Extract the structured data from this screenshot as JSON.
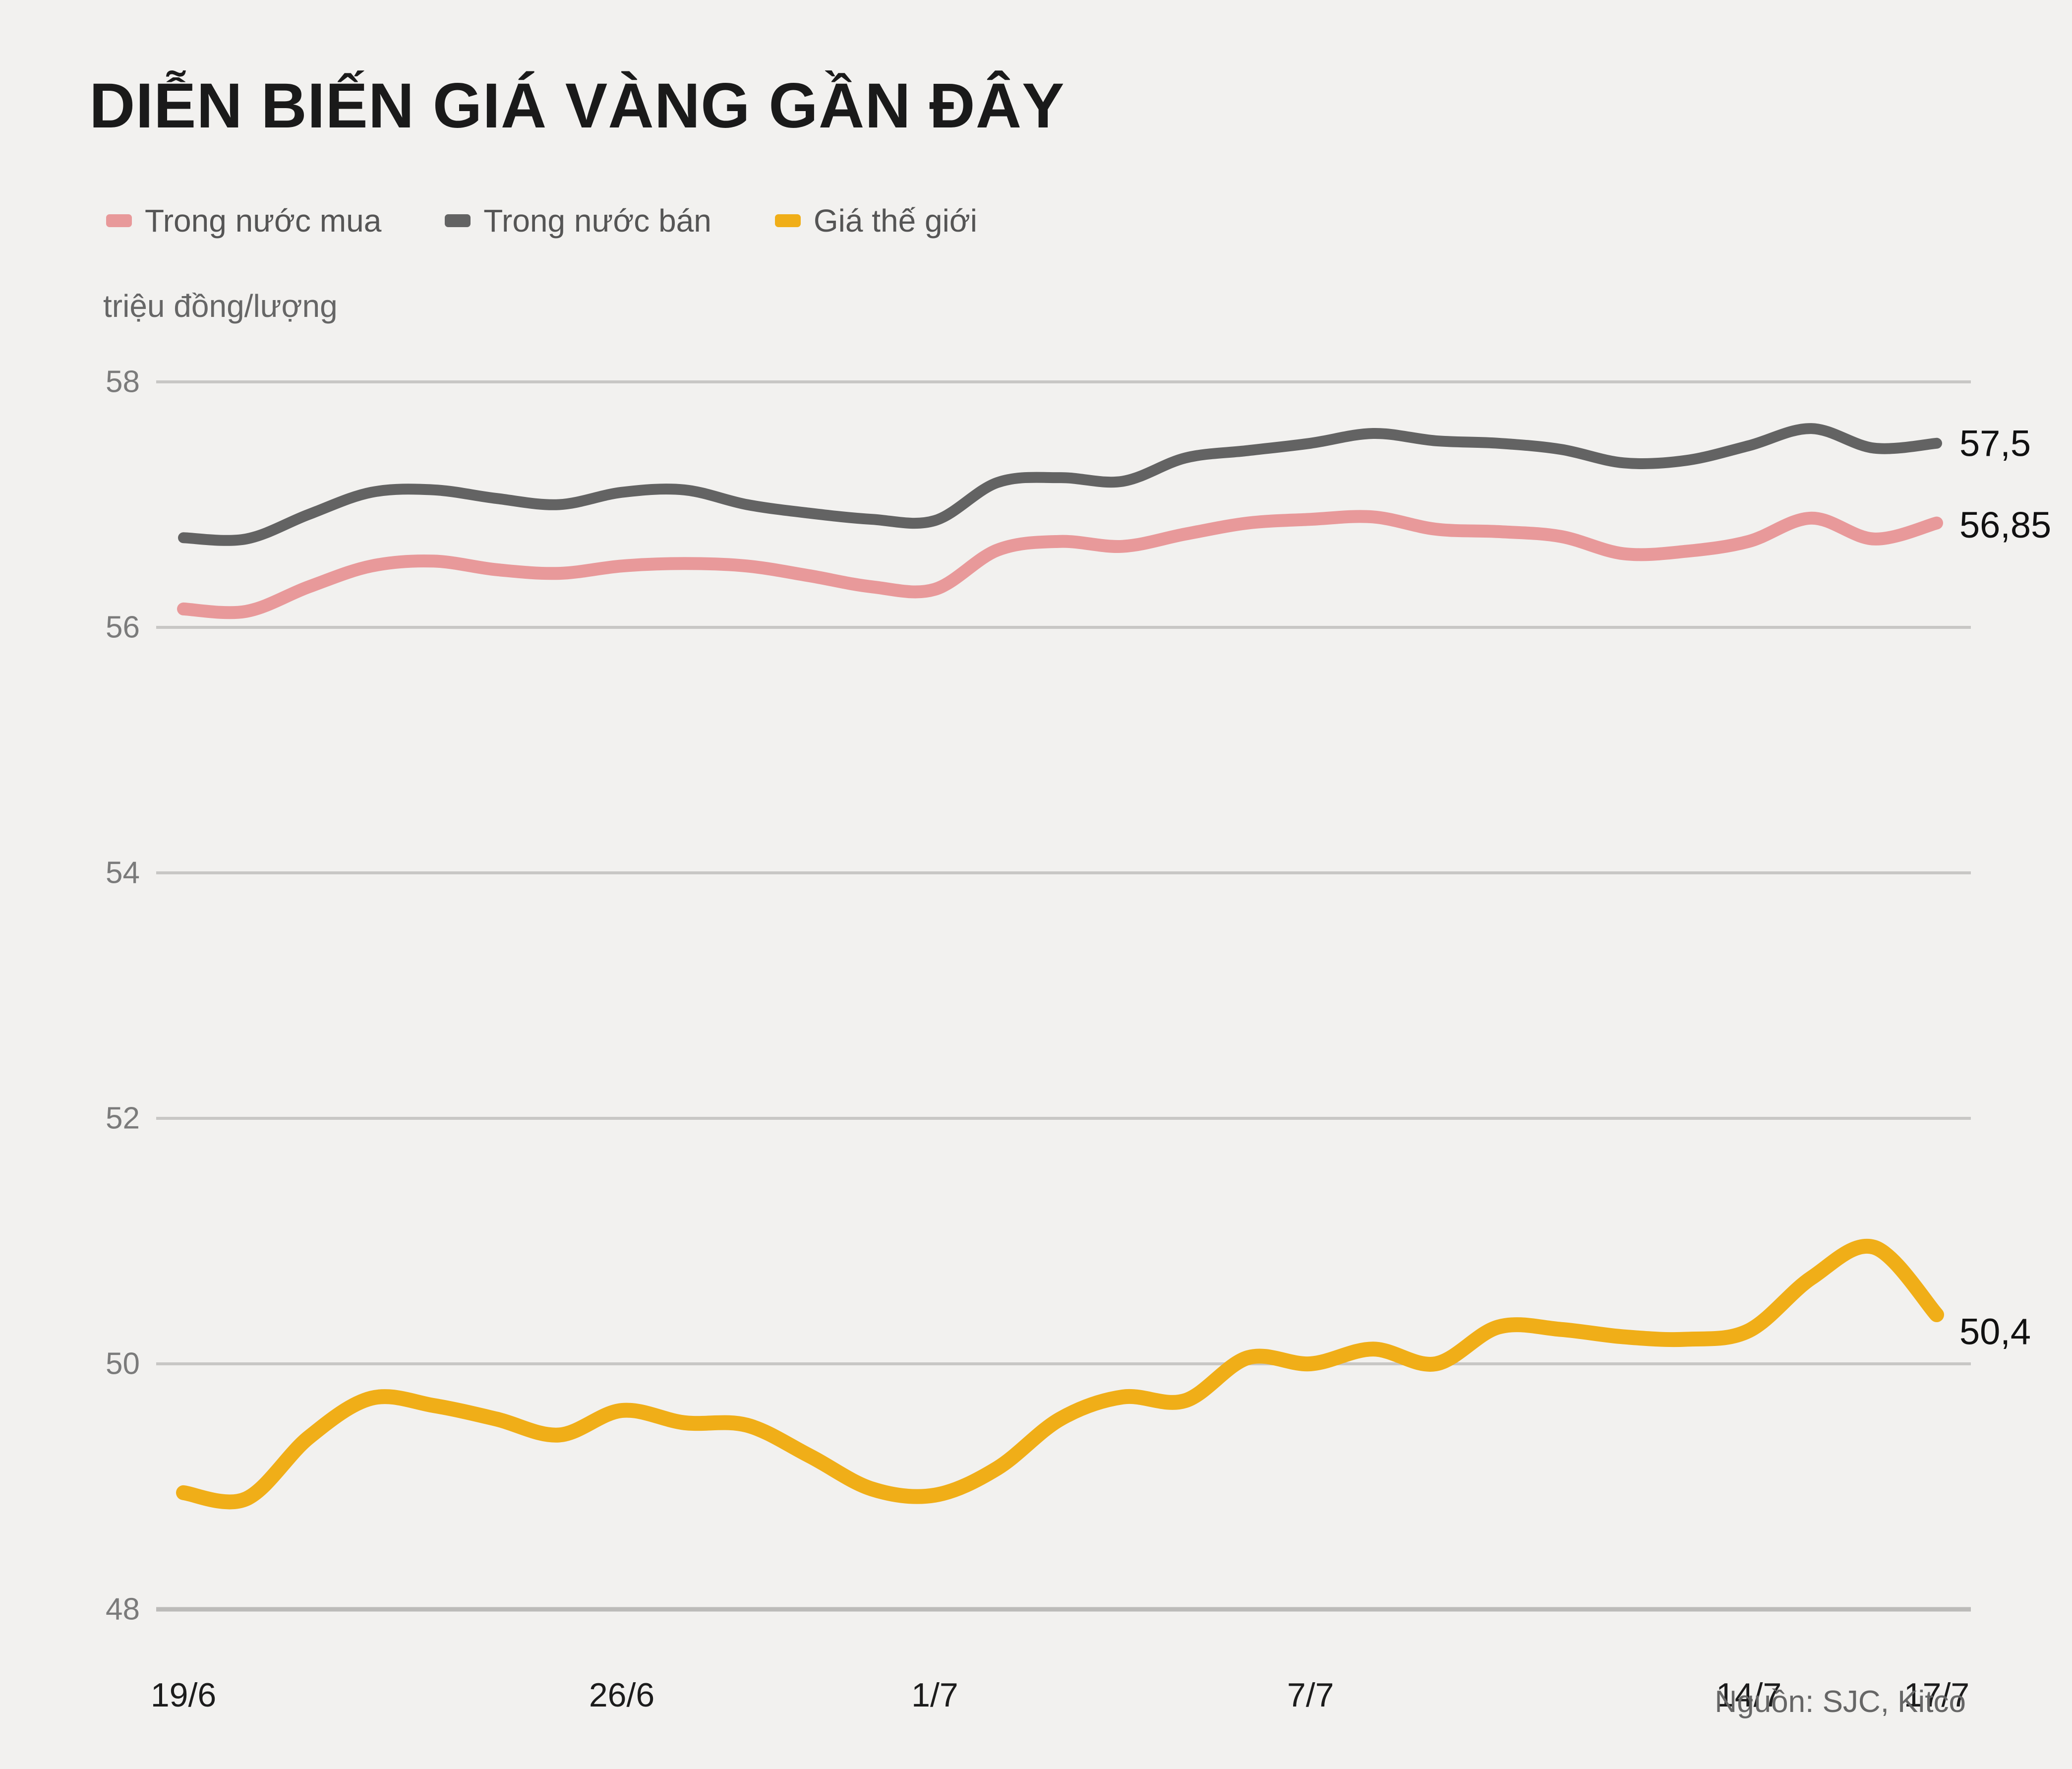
{
  "title": "DIỄN BIẾN GIÁ VÀNG GẦN ĐÂY",
  "source": "Nguồn: SJC, Kitco",
  "colors": {
    "background": "#f2f1ef",
    "title_text": "#1a1a1a",
    "muted_text": "#666666",
    "legend_text": "#555555",
    "grid": "#c8c7c5",
    "axis": "#bcbbb9",
    "y_tick_text": "#7b7b7b",
    "x_tick_text": "#1c1c1c",
    "end_label_text": "#111111",
    "buy": "#e8999a",
    "sell": "#636363",
    "world": "#f0ae18"
  },
  "legend": {
    "items": [
      {
        "label": "Trong nước mua",
        "color": "#e8999a"
      },
      {
        "label": "Trong nước bán",
        "color": "#636363"
      },
      {
        "label": "Giá thế giới",
        "color": "#f0ae18"
      }
    ]
  },
  "chart_data": {
    "type": "line",
    "title": "DIỄN BIẾN GIÁ VÀNG GẦN ĐÂY",
    "ylabel": "triệu đồng/lượng",
    "xlabel": "",
    "grid": "horizontal",
    "legend_position": "top",
    "ylim": [
      48,
      58
    ],
    "y_ticks": [
      58,
      56,
      54,
      52,
      50,
      48
    ],
    "x": [
      "19/6",
      "20/6",
      "21/6",
      "22/6",
      "23/6",
      "24/6",
      "25/6",
      "26/6",
      "27/6",
      "28/6",
      "29/6",
      "30/6",
      "1/7",
      "2/7",
      "3/7",
      "4/7",
      "5/7",
      "6/7",
      "7/7",
      "8/7",
      "9/7",
      "10/7",
      "11/7",
      "12/7",
      "13/7",
      "14/7",
      "15/7",
      "16/7",
      "17/7"
    ],
    "x_tick_labels": [
      {
        "label": "19/6",
        "index": 0
      },
      {
        "label": "26/6",
        "index": 7
      },
      {
        "label": "1/7",
        "index": 12
      },
      {
        "label": "7/7",
        "index": 18
      },
      {
        "label": "14/7",
        "index": 25
      },
      {
        "label": "17/7",
        "index": 28
      }
    ],
    "series": [
      {
        "name": "Trong nước bán",
        "color": "#636363",
        "end_label": "57,5",
        "values": [
          56.73,
          56.72,
          56.92,
          57.1,
          57.12,
          57.05,
          57.0,
          57.1,
          57.12,
          57.0,
          56.93,
          56.88,
          56.87,
          57.18,
          57.22,
          57.19,
          57.38,
          57.44,
          57.5,
          57.58,
          57.52,
          57.5,
          57.45,
          57.34,
          57.36,
          57.48,
          57.62,
          57.46,
          57.5
        ]
      },
      {
        "name": "Trong nước mua",
        "color": "#e8999a",
        "end_label": "56,85",
        "values": [
          56.15,
          56.13,
          56.33,
          56.5,
          56.54,
          56.47,
          56.44,
          56.5,
          56.52,
          56.5,
          56.42,
          56.33,
          56.31,
          56.63,
          56.7,
          56.66,
          56.76,
          56.85,
          56.88,
          56.9,
          56.8,
          56.78,
          56.74,
          56.6,
          56.62,
          56.7,
          56.89,
          56.72,
          56.85
        ]
      },
      {
        "name": "Giá thế giới",
        "color": "#f0ae18",
        "end_label": "50,4",
        "values": [
          48.95,
          48.9,
          49.4,
          49.72,
          49.66,
          49.55,
          49.42,
          49.62,
          49.52,
          49.5,
          49.25,
          48.98,
          48.93,
          49.15,
          49.55,
          49.73,
          49.7,
          50.05,
          50.0,
          50.12,
          50.0,
          50.3,
          50.28,
          50.22,
          50.2,
          50.27,
          50.7,
          50.95,
          50.4
        ]
      }
    ]
  }
}
